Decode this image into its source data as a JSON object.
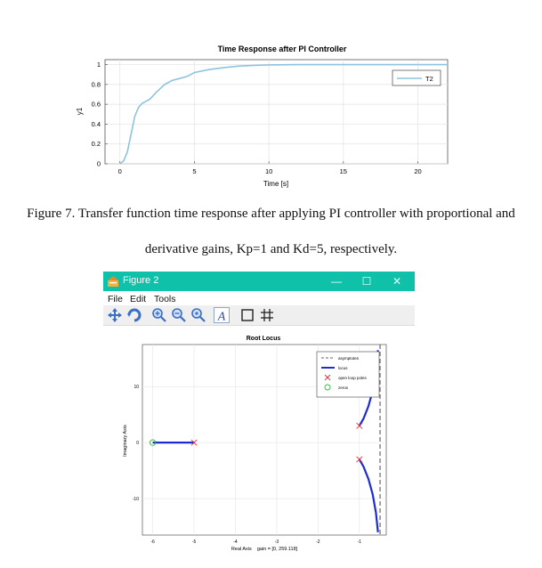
{
  "figure1": {
    "chart_data": {
      "type": "line",
      "title": "Time Response after PI Controller",
      "xlabel": "Time [s]",
      "ylabel": "y1",
      "xlim": [
        -1,
        22
      ],
      "ylim": [
        0,
        1.05
      ],
      "x_ticks": [
        0,
        5,
        10,
        15,
        20
      ],
      "y_ticks": [
        0,
        0.2,
        0.4,
        0.6,
        0.8,
        1
      ],
      "x_tick_labels": [
        "0",
        "5",
        "10",
        "15",
        "20"
      ],
      "y_tick_labels": [
        "0",
        "0.2",
        "0.4",
        "0.6",
        "0.8",
        "1"
      ],
      "grid": true,
      "legend_position": "top-right",
      "series": [
        {
          "name": "T2",
          "color": "#8ec3e0",
          "x": [
            0,
            0.25,
            0.5,
            0.75,
            1,
            1.25,
            1.5,
            1.75,
            2,
            2.25,
            2.5,
            3,
            3.5,
            4,
            4.5,
            5,
            6,
            7,
            8,
            9,
            10,
            12,
            15,
            18,
            22
          ],
          "y": [
            0,
            0.03,
            0.12,
            0.3,
            0.48,
            0.57,
            0.61,
            0.63,
            0.65,
            0.69,
            0.73,
            0.8,
            0.84,
            0.86,
            0.88,
            0.92,
            0.95,
            0.97,
            0.985,
            0.993,
            0.997,
            1,
            1,
            1,
            1
          ]
        }
      ]
    }
  },
  "caption": {
    "line1": "Figure 7. Transfer function time response after applying PI controller with proportional and",
    "line2": "derivative gains, Kp=1 and Kd=5, respectively."
  },
  "window": {
    "title": "Figure 2",
    "accent": "#0ec1a8",
    "app_icon": "octave-icon",
    "controls": {
      "minimize": "—",
      "maximize": "☐",
      "close": "✕"
    },
    "menu": [
      "File",
      "Edit",
      "Tools"
    ],
    "toolbar_icons": [
      "pan-icon",
      "rotate-icon",
      "zoom-in-icon",
      "zoom-out-icon",
      "zoom-reset-icon",
      "text-icon",
      "box-icon",
      "grid-icon"
    ]
  },
  "figure2": {
    "chart_data": {
      "type": "scatter",
      "title": "Root Locus",
      "xlabel": "Real Axis    gain = [0, 259.118]",
      "ylabel": "Imaginary Axis",
      "xlim": [
        -6.25,
        -0.35
      ],
      "ylim": [
        -16.5,
        17.5
      ],
      "x_ticks": [
        -6,
        -5,
        -4,
        -3,
        -2,
        -1
      ],
      "y_ticks": [
        -10,
        0,
        10
      ],
      "x_tick_labels": [
        "-6",
        "-5",
        "-4",
        "-3",
        "-2",
        "-1"
      ],
      "y_tick_labels": [
        "-10",
        "0",
        "10"
      ],
      "grid": true,
      "legend_position": "top-right",
      "legend": [
        "asymptotes",
        "locus",
        "open loop poles",
        "zeros"
      ],
      "asymptote_x": -0.5,
      "locus_color": "#1c2bd6",
      "pole_color": "#e0303a",
      "zero_color": "#2fba3c",
      "locus_branches": [
        {
          "x": [
            -5,
            -5.2,
            -5.5,
            -5.8,
            -6
          ],
          "y": [
            0,
            0,
            0,
            0,
            0
          ]
        },
        {
          "x": [
            -1,
            -0.9,
            -0.78,
            -0.68,
            -0.6,
            -0.55
          ],
          "y": [
            3,
            4.3,
            6.5,
            9.2,
            12.5,
            16.5
          ]
        },
        {
          "x": [
            -1,
            -0.9,
            -0.78,
            -0.68,
            -0.6,
            -0.55
          ],
          "y": [
            -3,
            -4.3,
            -6.5,
            -9.2,
            -12.5,
            -16
          ]
        }
      ],
      "open_loop_poles": [
        [
          -5,
          0
        ],
        [
          -1,
          3
        ],
        [
          -1,
          -3
        ]
      ],
      "zeros": [
        [
          -6,
          0
        ]
      ]
    }
  }
}
